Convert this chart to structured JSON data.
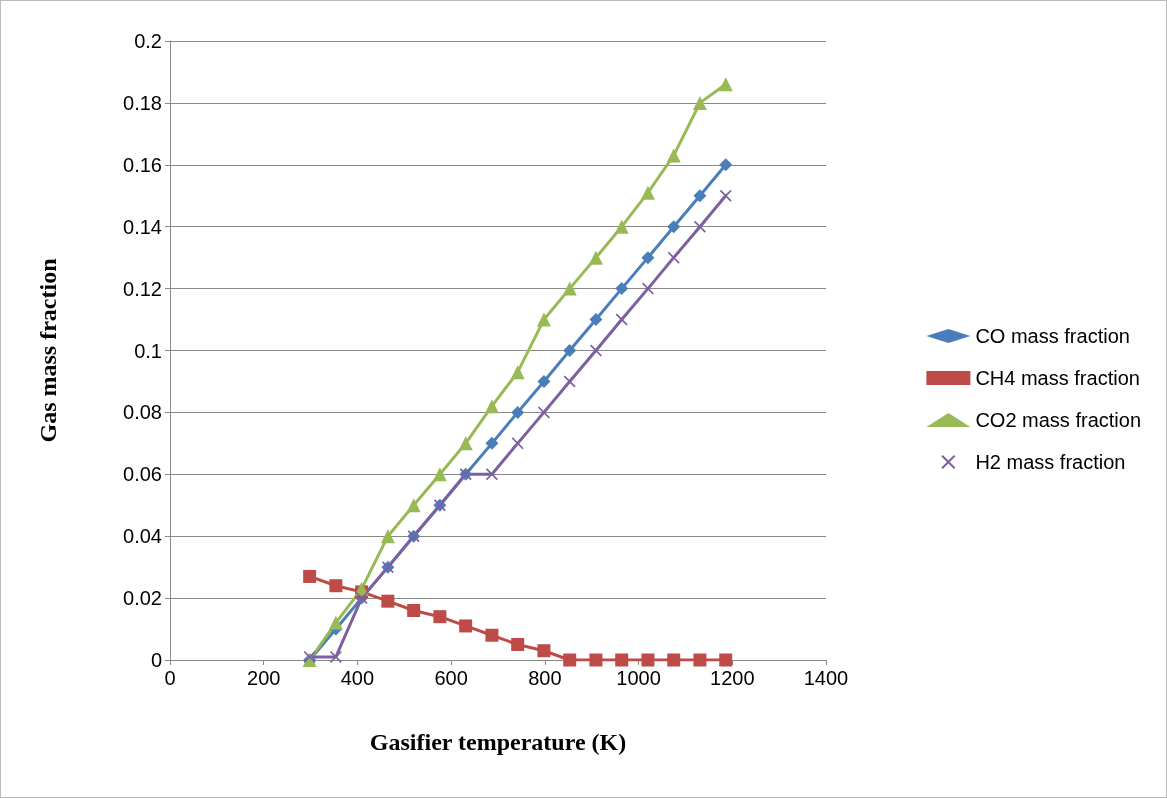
{
  "chart_data": {
    "type": "line",
    "xlabel": "Gasifier temperature (K)",
    "ylabel": "Gas mass fraction",
    "x": [
      298,
      354,
      409,
      465,
      520,
      576,
      631,
      687,
      742,
      798,
      853,
      909,
      964,
      1020,
      1075,
      1131,
      1186
    ],
    "series": [
      {
        "name": "CO mass fraction",
        "color": "#4a7ebb",
        "marker": "diamond",
        "values": [
          0,
          0.01,
          0.02,
          0.03,
          0.04,
          0.05,
          0.06,
          0.07,
          0.08,
          0.09,
          0.1,
          0.11,
          0.12,
          0.13,
          0.14,
          0.15,
          0.16
        ]
      },
      {
        "name": "CH4 mass fraction",
        "color": "#be4b48",
        "marker": "square",
        "values": [
          0.027,
          0.024,
          0.022,
          0.019,
          0.016,
          0.014,
          0.011,
          0.008,
          0.005,
          0.003,
          0,
          0,
          0,
          0,
          0,
          0,
          0
        ]
      },
      {
        "name": "CO2 mass fraction",
        "color": "#98b954",
        "marker": "triangle",
        "values": [
          0,
          0.012,
          0.023,
          0.04,
          0.05,
          0.06,
          0.07,
          0.082,
          0.093,
          0.11,
          0.12,
          0.13,
          0.14,
          0.151,
          0.163,
          0.18,
          0.186
        ]
      },
      {
        "name": "H2 mass fraction",
        "color": "#7d60a0",
        "marker": "cross",
        "values": [
          0.001,
          0.001,
          0.02,
          0.03,
          0.04,
          0.05,
          0.06,
          0.06,
          0.07,
          0.08,
          0.09,
          0.1,
          0.11,
          0.12,
          0.13,
          0.14,
          0.15
        ]
      }
    ],
    "xlim": [
      0,
      1400
    ],
    "xticks": [
      0,
      200,
      400,
      600,
      800,
      1000,
      1200,
      1400
    ],
    "ylim": [
      0,
      0.2
    ],
    "yticks": [
      0,
      0.02,
      0.04,
      0.06,
      0.08,
      0.1,
      0.12,
      0.14,
      0.16,
      0.18,
      0.2
    ],
    "grid": "y",
    "legend": "right",
    "line_style": "solid"
  }
}
